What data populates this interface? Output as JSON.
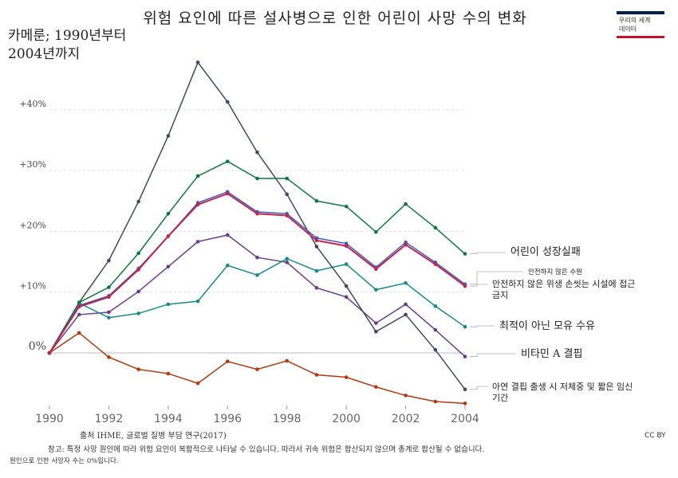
{
  "header": {
    "title": "위험 요인에 따른 설사병으로 인한 어린이 사망 수의 변화",
    "subtitle_line1": "카메룬; 1990년부터",
    "subtitle_line2": "2004년까지"
  },
  "logo": {
    "line1": "우리의 세계",
    "line2": "데이터"
  },
  "footer": {
    "source": "출처 IHME, 글로벌 질병 부담 연구(2017)",
    "license": "CC BY",
    "note1": "참고: 특정 사망 원인에 따라 위험 요인이 복합적으로 나타날 수 있습니다. 따라서 귀속 위험은 합산되지 않으며 총계로 합산될 수 없습니다.",
    "note2": "원인으로 인한 사망자 수는 0%입니다."
  },
  "chart_data": {
    "type": "line",
    "x": [
      1990,
      1991,
      1992,
      1993,
      1994,
      1995,
      1996,
      1997,
      1998,
      1999,
      2000,
      2001,
      2002,
      2003,
      2004
    ],
    "ylim": [
      -9,
      50
    ],
    "x_ticks": [
      1990,
      1992,
      1994,
      1996,
      1998,
      2000,
      2002,
      2004
    ],
    "y_ticks": [
      {
        "value": 0,
        "label": "0%"
      },
      {
        "value": 10,
        "label": "+10%"
      },
      {
        "value": 20,
        "label": "+20%"
      },
      {
        "value": 30,
        "label": "+30%"
      },
      {
        "value": 40,
        "label": "+40%"
      }
    ],
    "grid": true,
    "legend": "right, inline labels",
    "series": [
      {
        "name": "어린이 성장실패",
        "color": "#0c7a3e",
        "values": [
          0,
          8.3,
          10.8,
          16.4,
          22.9,
          29.1,
          31.5,
          28.7,
          28.7,
          25.0,
          24.1,
          19.9,
          24.5,
          20.6,
          16.3
        ]
      },
      {
        "name": "안전하지 않은 수원",
        "color": "#3b5ec0",
        "values": [
          0,
          7.8,
          9.4,
          13.9,
          19.2,
          24.7,
          26.5,
          23.2,
          22.9,
          18.9,
          18.0,
          14.1,
          18.2,
          14.9,
          11.3
        ]
      },
      {
        "name": "안전하지 않은 위생 손씻는 시설에 접근 금지",
        "color": "#c2254a",
        "values": [
          0,
          7.6,
          9.2,
          13.7,
          19.2,
          24.4,
          26.2,
          22.9,
          22.6,
          18.5,
          17.6,
          13.8,
          17.8,
          14.6,
          11.0
        ]
      },
      {
        "name": "최적이 아닌 모유 수유",
        "color": "#178a8a",
        "values": [
          0,
          8.2,
          5.8,
          6.5,
          8.0,
          8.5,
          14.4,
          12.8,
          15.5,
          13.5,
          14.6,
          10.4,
          11.5,
          7.7,
          4.3
        ]
      },
      {
        "name": "비타민 A 결핍",
        "color": "#6a3c8f",
        "values": [
          0,
          6.3,
          6.7,
          10.1,
          14.2,
          18.3,
          19.4,
          15.7,
          14.9,
          10.7,
          9.2,
          4.9,
          8.0,
          3.8,
          -0.6
        ]
      },
      {
        "name": "아연 결핍 출생 시 저체중 및 짧은 임신 기간",
        "color": "#3c4a63",
        "values": [
          0,
          8.3,
          15.2,
          24.9,
          35.7,
          47.8,
          41.3,
          33.0,
          26.1,
          17.5,
          11.0,
          3.5,
          6.3,
          0.5,
          -6.0
        ]
      },
      {
        "name": "",
        "color": "#b5380e",
        "values": [
          0,
          3.3,
          -0.7,
          -2.7,
          -3.4,
          -5.0,
          -1.4,
          -2.7,
          -1.3,
          -3.6,
          -4.0,
          -5.6,
          -7.0,
          -8.0,
          -8.3
        ]
      }
    ],
    "annotations": [
      {
        "text": "어린이 성장실패",
        "series": 0,
        "size": "large"
      },
      {
        "text": "안전하지 않은 수원",
        "series": 1,
        "size": "small"
      },
      {
        "text": "안전하지 않은 위생 손씻는 시설에 접근",
        "series": 2,
        "size": "medium",
        "line": 1
      },
      {
        "text": "금지",
        "series": 2,
        "size": "medium",
        "line": 2
      },
      {
        "text": "최적이 아닌 모유 수유",
        "series": 3,
        "size": "large"
      },
      {
        "text": "비타민 A 결핍",
        "series": 4,
        "size": "large"
      },
      {
        "text": "아연 결핍 출생 시 저체중 및 짧은 임신",
        "series": 5,
        "size": "medium",
        "line": 1
      },
      {
        "text": "기간",
        "series": 5,
        "size": "medium",
        "line": 2
      }
    ]
  }
}
